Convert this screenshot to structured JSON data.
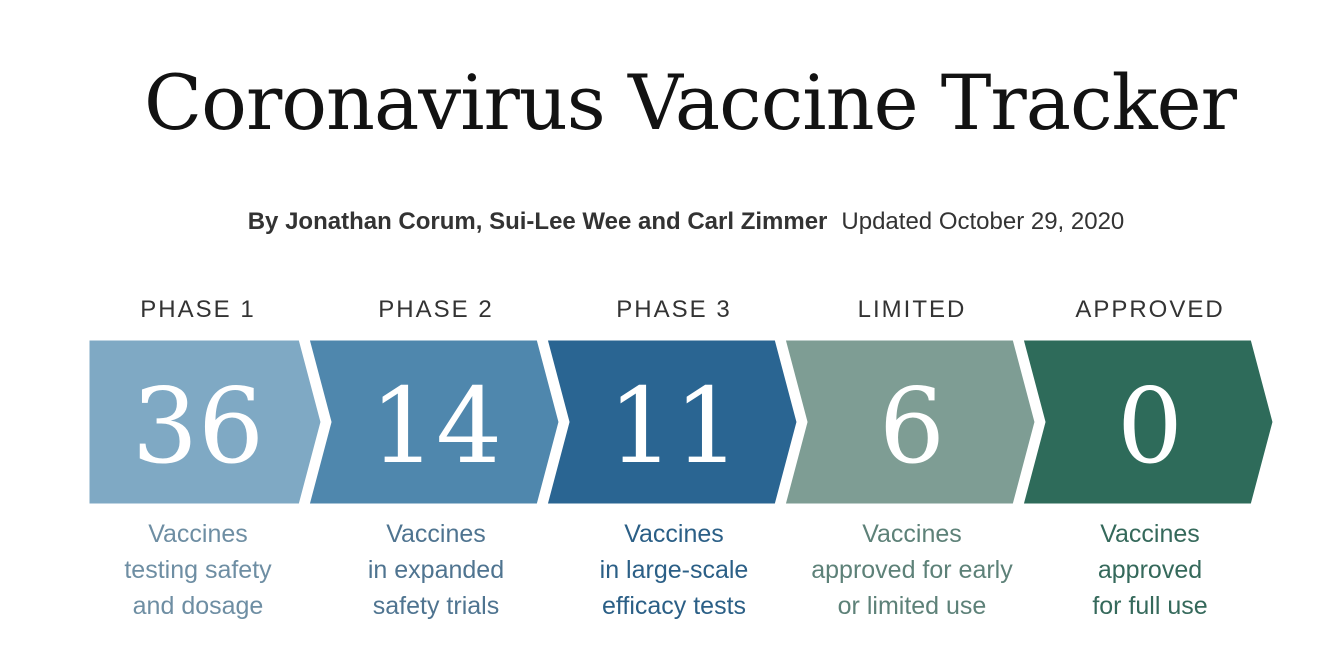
{
  "title": "Coronavirus Vaccine Tracker",
  "byline": {
    "authors": "By Jonathan Corum, Sui-Lee Wee and Carl Zimmer",
    "updated": "Updated October 29, 2020"
  },
  "phases": [
    {
      "label": "PHASE 1",
      "count": "36",
      "color": "#7fa9c4",
      "text_color": "#6e8ea3",
      "desc": [
        "Vaccines",
        "testing safety",
        "and dosage"
      ]
    },
    {
      "label": "PHASE 2",
      "count": "14",
      "color": "#4f87ad",
      "text_color": "#4f7490",
      "desc": [
        "Vaccines",
        "in expanded",
        "safety trials"
      ]
    },
    {
      "label": "PHASE 3",
      "count": "11",
      "color": "#2a6592",
      "text_color": "#2b5f86",
      "desc": [
        "Vaccines",
        "in large-scale",
        "efficacy tests"
      ]
    },
    {
      "label": "LIMITED",
      "count": "6",
      "color": "#7e9d94",
      "text_color": "#5d8178",
      "desc": [
        "Vaccines",
        "approved for early",
        "or limited use"
      ]
    },
    {
      "label": "APPROVED",
      "count": "0",
      "color": "#2e6b5a",
      "text_color": "#35695b",
      "desc": [
        "Vaccines",
        "approved",
        "for full use"
      ]
    }
  ]
}
